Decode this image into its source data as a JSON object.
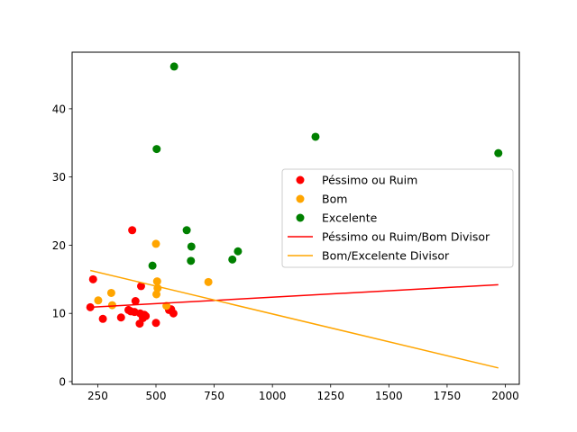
{
  "chart_data": {
    "type": "scatter",
    "title": "",
    "xlabel": "",
    "ylabel": "",
    "xlim": [
      140,
      2060
    ],
    "ylim": [
      -0.4,
      48.3
    ],
    "xticks": [
      250,
      500,
      750,
      1000,
      1250,
      1500,
      1750,
      2000
    ],
    "yticks": [
      0,
      10,
      20,
      30,
      40
    ],
    "grid": false,
    "legend_position": "center-right",
    "series": [
      {
        "name": "Péssimo ou Ruim",
        "kind": "scatter",
        "color": "#ff0000",
        "points": [
          [
            218,
            10.9
          ],
          [
            230,
            15.0
          ],
          [
            272,
            9.2
          ],
          [
            350,
            9.4
          ],
          [
            382,
            10.5
          ],
          [
            392,
            10.3
          ],
          [
            398,
            22.2
          ],
          [
            408,
            10.2
          ],
          [
            412,
            11.8
          ],
          [
            430,
            8.5
          ],
          [
            432,
            10.0
          ],
          [
            436,
            14.0
          ],
          [
            444,
            9.3
          ],
          [
            450,
            9.8
          ],
          [
            456,
            9.6
          ],
          [
            500,
            8.6
          ],
          [
            556,
            10.5
          ],
          [
            565,
            10.6
          ],
          [
            575,
            10.0
          ]
        ]
      },
      {
        "name": "Bom",
        "kind": "scatter",
        "color": "#ffa500",
        "points": [
          [
            252,
            11.9
          ],
          [
            308,
            13.0
          ],
          [
            312,
            11.2
          ],
          [
            500,
            20.2
          ],
          [
            502,
            12.8
          ],
          [
            505,
            14.7
          ],
          [
            507,
            13.7
          ],
          [
            545,
            11.1
          ],
          [
            725,
            14.6
          ]
        ]
      },
      {
        "name": "Excelente",
        "kind": "scatter",
        "color": "#008000",
        "points": [
          [
            485,
            17.0
          ],
          [
            503,
            34.1
          ],
          [
            578,
            46.2
          ],
          [
            632,
            22.2
          ],
          [
            650,
            17.7
          ],
          [
            652,
            19.8
          ],
          [
            828,
            17.9
          ],
          [
            852,
            19.1
          ],
          [
            1185,
            35.9
          ],
          [
            1970,
            33.5
          ]
        ]
      },
      {
        "name": "Péssimo ou Ruim/Bom Divisor",
        "kind": "line",
        "color": "#ff0000",
        "points": [
          [
            218,
            10.9
          ],
          [
            1970,
            14.2
          ]
        ]
      },
      {
        "name": "Bom/Excelente Divisor",
        "kind": "line",
        "color": "#ffa500",
        "points": [
          [
            218,
            16.3
          ],
          [
            1970,
            2.0
          ]
        ]
      }
    ]
  }
}
